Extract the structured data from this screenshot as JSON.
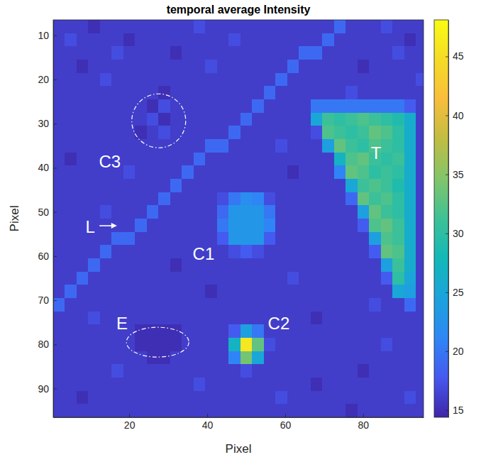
{
  "chart_data": {
    "type": "heatmap",
    "title": "temporal average Intensity",
    "x_label": "Pixel",
    "y_label": "Pixel",
    "xlim": [
      0.5,
      95.5
    ],
    "ylim": [
      6.5,
      96.5
    ],
    "xticks": [
      20,
      40,
      60,
      80
    ],
    "yticks": [
      10,
      20,
      30,
      40,
      50,
      60,
      70,
      80,
      90
    ],
    "x": [
      2,
      5,
      8,
      11,
      14,
      17,
      20,
      23,
      26,
      29,
      32,
      35,
      38,
      41,
      44,
      47,
      50,
      53,
      56,
      59,
      62,
      65,
      68,
      71,
      74,
      77,
      80,
      83,
      86,
      89,
      92,
      95
    ],
    "y": [
      8,
      11,
      14,
      17,
      20,
      23,
      26,
      29,
      32,
      35,
      38,
      41,
      44,
      47,
      50,
      53,
      56,
      59,
      62,
      65,
      68,
      71,
      74,
      77,
      80,
      83,
      86,
      89,
      92,
      95
    ],
    "values": [
      [
        16,
        16,
        16,
        15,
        16,
        16,
        16,
        16,
        16,
        16,
        16,
        16,
        17,
        16,
        16,
        16,
        16,
        16,
        16,
        16,
        16,
        16,
        16,
        16,
        19,
        16,
        16,
        16,
        17,
        16,
        16,
        16
      ],
      [
        16,
        17,
        16,
        16,
        16,
        16,
        15,
        16,
        16,
        16,
        16,
        16,
        16,
        16,
        16,
        17,
        16,
        16,
        16,
        16,
        16,
        16,
        16,
        19,
        16,
        16,
        16,
        16,
        16,
        16,
        15,
        16
      ],
      [
        16,
        16,
        16,
        16,
        16,
        17,
        16,
        16,
        16,
        16,
        15,
        16,
        16,
        16,
        16,
        16,
        16,
        16,
        16,
        16,
        16,
        19,
        19,
        16,
        16,
        16,
        16,
        16,
        16,
        17,
        16,
        16
      ],
      [
        16,
        16,
        15,
        16,
        16,
        16,
        16,
        16,
        16,
        16,
        16,
        16,
        16,
        17,
        16,
        16,
        16,
        16,
        16,
        16,
        19,
        16,
        16,
        16,
        16,
        16,
        15,
        16,
        16,
        16,
        16,
        16
      ],
      [
        16,
        16,
        16,
        16,
        17,
        16,
        16,
        16,
        16,
        16,
        16,
        16,
        16,
        16,
        16,
        16,
        16,
        16,
        16,
        19,
        16,
        16,
        16,
        16,
        16,
        16,
        16,
        16,
        16,
        16,
        16,
        17
      ],
      [
        16,
        16,
        16,
        16,
        16,
        16,
        16,
        16,
        16,
        15,
        16,
        16,
        16,
        16,
        16,
        16,
        16,
        16,
        19,
        16,
        16,
        16,
        16,
        16,
        16,
        17,
        16,
        16,
        16,
        16,
        16,
        16
      ],
      [
        16,
        16,
        16,
        16,
        16,
        16,
        16,
        16,
        15,
        17,
        16,
        16,
        16,
        16,
        16,
        16,
        16,
        19,
        16,
        16,
        16,
        16,
        20,
        20,
        20,
        20,
        20,
        20,
        20,
        20,
        18,
        16
      ],
      [
        16,
        16,
        16,
        16,
        16,
        16,
        16,
        16,
        17,
        15,
        16,
        16,
        16,
        16,
        16,
        16,
        19,
        16,
        16,
        16,
        16,
        16,
        25,
        31,
        30,
        31,
        32,
        31,
        30,
        29,
        26,
        16
      ],
      [
        16,
        16,
        16,
        16,
        16,
        16,
        16,
        15,
        16,
        17,
        16,
        16,
        16,
        16,
        16,
        19,
        16,
        16,
        16,
        16,
        16,
        16,
        17,
        32,
        31,
        30,
        31,
        33,
        32,
        30,
        26,
        16
      ],
      [
        16,
        16,
        16,
        16,
        16,
        16,
        16,
        16,
        16,
        16,
        16,
        16,
        16,
        19,
        19,
        16,
        16,
        16,
        16,
        17,
        16,
        16,
        16,
        24,
        33,
        31,
        30,
        32,
        31,
        30,
        26,
        16
      ],
      [
        16,
        15,
        16,
        16,
        16,
        16,
        16,
        16,
        16,
        16,
        16,
        16,
        19,
        16,
        16,
        16,
        16,
        16,
        16,
        16,
        16,
        16,
        16,
        16,
        27,
        32,
        33,
        31,
        30,
        31,
        26,
        16
      ],
      [
        16,
        16,
        16,
        16,
        16,
        16,
        17,
        16,
        16,
        16,
        16,
        19,
        16,
        16,
        16,
        16,
        16,
        16,
        16,
        16,
        15,
        16,
        16,
        16,
        21,
        33,
        32,
        30,
        31,
        30,
        26,
        16
      ],
      [
        16,
        16,
        16,
        16,
        16,
        16,
        16,
        16,
        16,
        16,
        19,
        16,
        16,
        16,
        16,
        16,
        16,
        16,
        16,
        16,
        16,
        16,
        16,
        16,
        16,
        25,
        31,
        32,
        31,
        29,
        26,
        16
      ],
      [
        16,
        16,
        16,
        16,
        16,
        16,
        16,
        16,
        16,
        19,
        16,
        16,
        16,
        16,
        17,
        20,
        22,
        21,
        17,
        16,
        16,
        16,
        16,
        16,
        16,
        19,
        33,
        31,
        32,
        30,
        26,
        16
      ],
      [
        16,
        16,
        16,
        16,
        17,
        16,
        16,
        16,
        19,
        16,
        16,
        16,
        16,
        16,
        19,
        23,
        23,
        23,
        20,
        16,
        16,
        16,
        16,
        16,
        16,
        16,
        24,
        33,
        31,
        30,
        26,
        16
      ],
      [
        16,
        16,
        16,
        16,
        16,
        16,
        16,
        19,
        16,
        16,
        16,
        16,
        16,
        16,
        20,
        23,
        23,
        23,
        21,
        16,
        16,
        16,
        16,
        16,
        16,
        16,
        18,
        32,
        33,
        31,
        26,
        16
      ],
      [
        16,
        16,
        16,
        16,
        16,
        19,
        19,
        16,
        16,
        16,
        16,
        16,
        16,
        16,
        18,
        23,
        23,
        23,
        18,
        16,
        16,
        16,
        16,
        16,
        16,
        16,
        16,
        24,
        32,
        31,
        26,
        16
      ],
      [
        16,
        16,
        16,
        16,
        19,
        16,
        16,
        16,
        16,
        16,
        16,
        16,
        16,
        16,
        16,
        17,
        18,
        17,
        16,
        16,
        16,
        16,
        16,
        16,
        16,
        16,
        16,
        18,
        33,
        32,
        26,
        16
      ],
      [
        16,
        16,
        16,
        19,
        16,
        16,
        16,
        16,
        16,
        16,
        15,
        16,
        16,
        16,
        16,
        16,
        16,
        16,
        16,
        16,
        16,
        16,
        16,
        16,
        16,
        16,
        16,
        16,
        24,
        31,
        26,
        16
      ],
      [
        16,
        16,
        19,
        16,
        16,
        16,
        16,
        16,
        16,
        16,
        16,
        16,
        16,
        16,
        16,
        16,
        16,
        16,
        16,
        16,
        17,
        16,
        16,
        16,
        16,
        16,
        16,
        16,
        18,
        30,
        25,
        16
      ],
      [
        16,
        19,
        16,
        16,
        16,
        16,
        16,
        16,
        16,
        16,
        16,
        16,
        16,
        15,
        16,
        16,
        16,
        16,
        16,
        16,
        16,
        16,
        16,
        16,
        16,
        16,
        16,
        16,
        16,
        25,
        24,
        16
      ],
      [
        19,
        16,
        16,
        16,
        16,
        16,
        16,
        16,
        16,
        16,
        16,
        16,
        16,
        16,
        16,
        16,
        16,
        16,
        16,
        16,
        16,
        16,
        16,
        16,
        16,
        16,
        16,
        17,
        16,
        16,
        19,
        16
      ],
      [
        16,
        16,
        16,
        17,
        16,
        16,
        16,
        16,
        16,
        16,
        16,
        16,
        16,
        16,
        16,
        16,
        16,
        16,
        16,
        16,
        16,
        16,
        15,
        16,
        16,
        16,
        16,
        16,
        16,
        16,
        16,
        16
      ],
      [
        16,
        16,
        16,
        16,
        16,
        16,
        16,
        15,
        15,
        15,
        15,
        16,
        16,
        16,
        16,
        18,
        24,
        20,
        16,
        16,
        16,
        16,
        16,
        16,
        16,
        16,
        16,
        16,
        16,
        16,
        16,
        16
      ],
      [
        16,
        16,
        16,
        16,
        16,
        16,
        16,
        15,
        15,
        15,
        15,
        16,
        16,
        16,
        16,
        27,
        46,
        33,
        17,
        16,
        16,
        16,
        16,
        16,
        16,
        16,
        16,
        16,
        17,
        16,
        16,
        16
      ],
      [
        16,
        16,
        16,
        16,
        16,
        16,
        16,
        16,
        15,
        15,
        16,
        16,
        16,
        16,
        16,
        21,
        34,
        25,
        16,
        16,
        16,
        16,
        16,
        16,
        16,
        16,
        16,
        16,
        16,
        16,
        16,
        16
      ],
      [
        16,
        16,
        16,
        16,
        16,
        17,
        16,
        16,
        16,
        16,
        16,
        16,
        16,
        16,
        16,
        16,
        17,
        16,
        16,
        16,
        16,
        16,
        16,
        16,
        16,
        16,
        15,
        16,
        16,
        16,
        16,
        16
      ],
      [
        16,
        16,
        16,
        16,
        16,
        16,
        16,
        16,
        16,
        16,
        16,
        16,
        17,
        16,
        16,
        16,
        16,
        16,
        16,
        16,
        16,
        16,
        15,
        16,
        16,
        16,
        16,
        16,
        16,
        16,
        16,
        16
      ],
      [
        16,
        16,
        15,
        16,
        16,
        16,
        16,
        16,
        16,
        16,
        16,
        16,
        16,
        16,
        16,
        16,
        16,
        16,
        16,
        17,
        16,
        16,
        16,
        16,
        16,
        16,
        16,
        16,
        16,
        16,
        17,
        16
      ],
      [
        16,
        16,
        16,
        16,
        16,
        16,
        16,
        16,
        16,
        16,
        16,
        16,
        16,
        16,
        16,
        16,
        16,
        16,
        16,
        16,
        16,
        16,
        16,
        16,
        16,
        15,
        16,
        16,
        16,
        16,
        16,
        16
      ]
    ],
    "color_range": [
      14.4,
      48.1
    ],
    "color_ticks": [
      15,
      20,
      25,
      30,
      35,
      40,
      45
    ],
    "annotations": [
      "C3",
      "L",
      "C1",
      "C2",
      "T",
      "E"
    ]
  }
}
